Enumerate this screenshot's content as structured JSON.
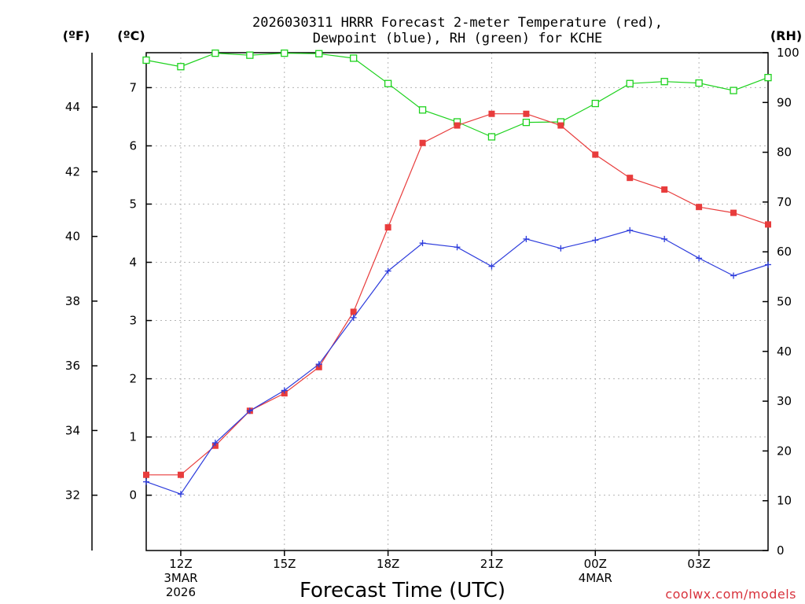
{
  "chart_data": {
    "type": "line",
    "title_line1": "2026030311 HRRR Forecast 2-meter Temperature (red),",
    "title_line2": "Dewpoint (blue), RH (green) for KCHE",
    "xlabel": "Forecast Time (UTC)",
    "credit": "coolwx.com/models",
    "units": {
      "fahrenheit": "(ºF)",
      "celsius": "(ºC)",
      "rh": "(RH)"
    },
    "x_hours": [
      11,
      12,
      13,
      14,
      15,
      16,
      17,
      18,
      19,
      20,
      21,
      22,
      23,
      24,
      25,
      26,
      27,
      28,
      29
    ],
    "xlim": [
      11,
      29
    ],
    "x_ticks": [
      {
        "hour": 12,
        "lines": [
          "12Z",
          "3MAR",
          "2026"
        ]
      },
      {
        "hour": 15,
        "lines": [
          "15Z"
        ]
      },
      {
        "hour": 18,
        "lines": [
          "18Z"
        ]
      },
      {
        "hour": 21,
        "lines": [
          "21Z"
        ]
      },
      {
        "hour": 24,
        "lines": [
          "00Z",
          "4MAR"
        ]
      },
      {
        "hour": 27,
        "lines": [
          "03Z"
        ]
      }
    ],
    "celsius_axis": {
      "ylim": [
        -0.95,
        7.6
      ],
      "ticks": [
        "0",
        "1",
        "2",
        "3",
        "4",
        "5",
        "6",
        "7"
      ]
    },
    "fahrenheit_axis": {
      "ticks": [
        "32",
        "34",
        "36",
        "38",
        "40",
        "42",
        "44"
      ]
    },
    "rh_axis": {
      "ylim": [
        0,
        100
      ],
      "ticks": [
        "0",
        "10",
        "20",
        "30",
        "40",
        "50",
        "60",
        "70",
        "80",
        "90",
        "100"
      ]
    },
    "colors": {
      "temperature": "#e83c3c",
      "dewpoint": "#2d3cdc",
      "rh": "#1ed21e"
    },
    "series": [
      {
        "name": "Temperature",
        "axis": "celsius",
        "marker": "square",
        "values": [
          0.35,
          0.35,
          0.85,
          1.45,
          1.75,
          2.2,
          3.15,
          4.6,
          6.05,
          6.35,
          6.55,
          6.55,
          6.35,
          5.85,
          5.45,
          5.25,
          4.95,
          4.85,
          4.65
        ]
      },
      {
        "name": "Dewpoint",
        "axis": "celsius",
        "marker": "plus",
        "values": [
          0.23,
          0.02,
          0.9,
          1.45,
          1.8,
          2.25,
          3.05,
          3.85,
          4.33,
          4.26,
          3.93,
          4.4,
          4.24,
          4.38,
          4.55,
          4.4,
          4.07,
          3.77,
          3.96
        ]
      },
      {
        "name": "RH",
        "axis": "rh",
        "marker": "open-square",
        "values": [
          98.5,
          97.2,
          99.9,
          99.5,
          99.9,
          99.8,
          98.9,
          93.8,
          88.5,
          86.1,
          83.1,
          86.0,
          86.1,
          89.8,
          93.8,
          94.2,
          93.9,
          92.4,
          95.0
        ]
      }
    ]
  }
}
